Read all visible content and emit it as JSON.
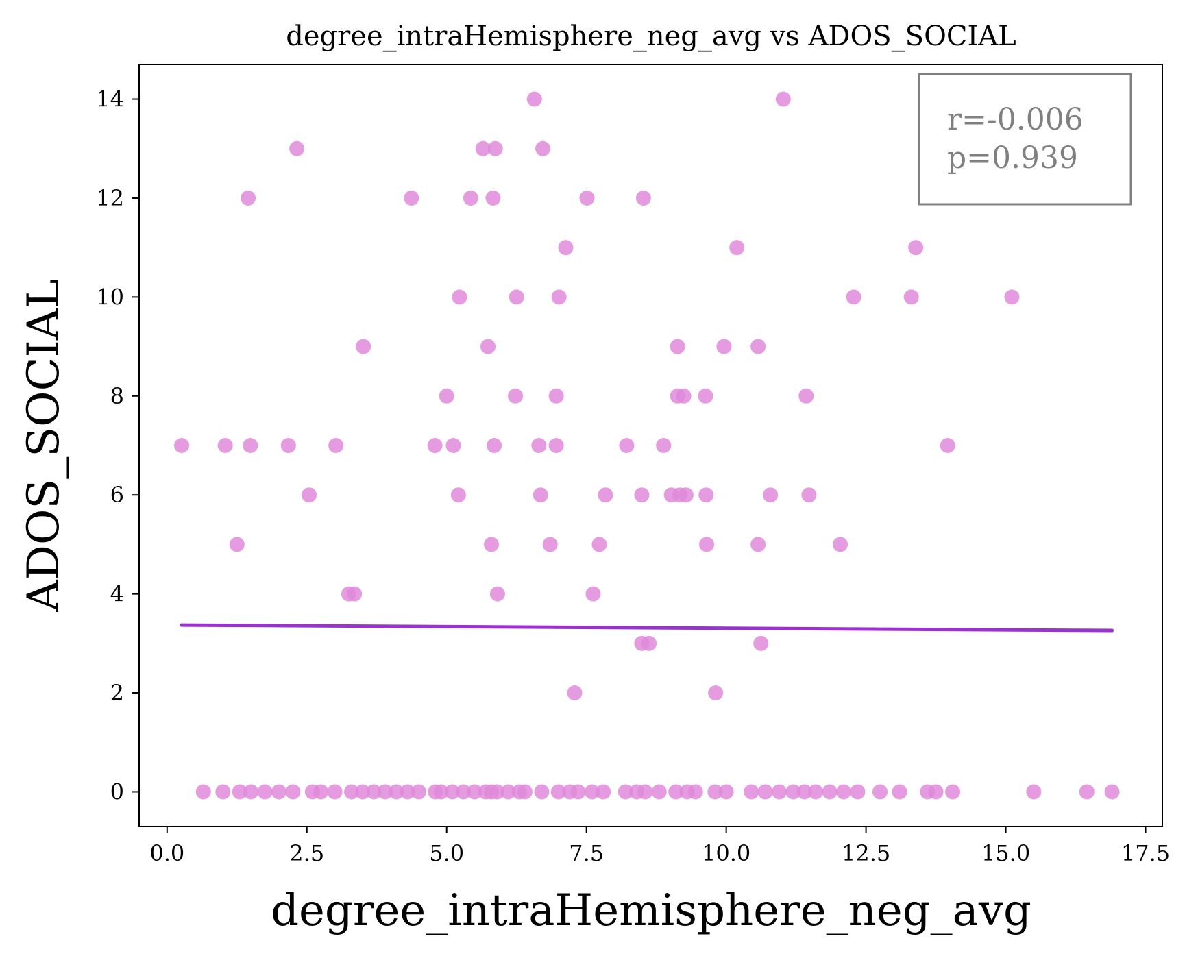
{
  "chart_data": {
    "type": "scatter",
    "title": "degree_intraHemisphere_neg_avg vs ADOS_SOCIAL",
    "xlabel": "degree_intraHemisphere_neg_avg",
    "ylabel": "ADOS_SOCIAL",
    "xlim": [
      -0.5,
      17.8
    ],
    "ylim": [
      -0.7,
      14.7
    ],
    "xticks": [
      0.0,
      2.5,
      5.0,
      7.5,
      10.0,
      12.5,
      15.0,
      17.5
    ],
    "xtick_labels": [
      "0.0",
      "2.5",
      "5.0",
      "7.5",
      "10.0",
      "12.5",
      "15.0",
      "17.5"
    ],
    "yticks": [
      0,
      2,
      4,
      6,
      8,
      10,
      12,
      14
    ],
    "ytick_labels": [
      "0",
      "2",
      "4",
      "6",
      "8",
      "10",
      "12",
      "14"
    ],
    "grid": false,
    "point_color": "#df8ad9",
    "line_color": "#9a32cd",
    "points": [
      [
        6.57,
        14
      ],
      [
        11.02,
        14
      ],
      [
        2.32,
        13
      ],
      [
        5.65,
        13
      ],
      [
        5.87,
        13
      ],
      [
        6.72,
        13
      ],
      [
        1.45,
        12
      ],
      [
        4.37,
        12
      ],
      [
        5.43,
        12
      ],
      [
        5.83,
        12
      ],
      [
        7.51,
        12
      ],
      [
        8.52,
        12
      ],
      [
        7.13,
        11
      ],
      [
        10.19,
        11
      ],
      [
        13.39,
        11
      ],
      [
        5.23,
        10
      ],
      [
        6.25,
        10
      ],
      [
        7.01,
        10
      ],
      [
        12.28,
        10
      ],
      [
        13.31,
        10
      ],
      [
        15.11,
        10
      ],
      [
        3.51,
        9
      ],
      [
        5.74,
        9
      ],
      [
        9.13,
        9
      ],
      [
        9.96,
        9
      ],
      [
        10.57,
        9
      ],
      [
        5.0,
        8
      ],
      [
        6.23,
        8
      ],
      [
        6.96,
        8
      ],
      [
        9.13,
        8
      ],
      [
        9.24,
        8
      ],
      [
        9.63,
        8
      ],
      [
        11.43,
        8
      ],
      [
        0.26,
        7
      ],
      [
        1.04,
        7
      ],
      [
        1.49,
        7
      ],
      [
        2.17,
        7
      ],
      [
        3.02,
        7
      ],
      [
        4.79,
        7
      ],
      [
        5.12,
        7
      ],
      [
        5.85,
        7
      ],
      [
        6.65,
        7
      ],
      [
        6.96,
        7
      ],
      [
        8.22,
        7
      ],
      [
        8.88,
        7
      ],
      [
        13.96,
        7
      ],
      [
        2.54,
        6
      ],
      [
        5.21,
        6
      ],
      [
        6.68,
        6
      ],
      [
        7.84,
        6
      ],
      [
        8.49,
        6
      ],
      [
        9.02,
        6
      ],
      [
        9.17,
        6
      ],
      [
        9.28,
        6
      ],
      [
        9.64,
        6
      ],
      [
        10.79,
        6
      ],
      [
        11.48,
        6
      ],
      [
        1.25,
        5
      ],
      [
        5.8,
        5
      ],
      [
        6.85,
        5
      ],
      [
        7.73,
        5
      ],
      [
        9.65,
        5
      ],
      [
        10.57,
        5
      ],
      [
        12.04,
        5
      ],
      [
        3.25,
        4
      ],
      [
        3.35,
        4
      ],
      [
        5.91,
        4
      ],
      [
        7.62,
        4
      ],
      [
        8.49,
        3
      ],
      [
        8.62,
        3
      ],
      [
        10.62,
        3
      ],
      [
        7.29,
        2
      ],
      [
        9.81,
        2
      ],
      [
        0.65,
        0
      ],
      [
        1.0,
        0
      ],
      [
        1.3,
        0
      ],
      [
        1.5,
        0
      ],
      [
        1.75,
        0
      ],
      [
        2.0,
        0
      ],
      [
        2.25,
        0
      ],
      [
        2.6,
        0
      ],
      [
        2.75,
        0
      ],
      [
        3.0,
        0
      ],
      [
        3.3,
        0
      ],
      [
        3.5,
        0
      ],
      [
        3.7,
        0
      ],
      [
        3.9,
        0
      ],
      [
        4.1,
        0
      ],
      [
        4.3,
        0
      ],
      [
        4.5,
        0
      ],
      [
        4.8,
        0
      ],
      [
        4.9,
        0
      ],
      [
        5.1,
        0
      ],
      [
        5.3,
        0
      ],
      [
        5.5,
        0
      ],
      [
        5.7,
        0
      ],
      [
        5.8,
        0
      ],
      [
        5.9,
        0
      ],
      [
        6.1,
        0
      ],
      [
        6.3,
        0
      ],
      [
        6.4,
        0
      ],
      [
        6.7,
        0
      ],
      [
        7.0,
        0
      ],
      [
        7.2,
        0
      ],
      [
        7.35,
        0
      ],
      [
        7.6,
        0
      ],
      [
        7.8,
        0
      ],
      [
        8.2,
        0
      ],
      [
        8.4,
        0
      ],
      [
        8.55,
        0
      ],
      [
        8.8,
        0
      ],
      [
        9.1,
        0
      ],
      [
        9.3,
        0
      ],
      [
        9.45,
        0
      ],
      [
        9.8,
        0
      ],
      [
        10.0,
        0
      ],
      [
        10.45,
        0
      ],
      [
        10.7,
        0
      ],
      [
        10.95,
        0
      ],
      [
        11.2,
        0
      ],
      [
        11.4,
        0
      ],
      [
        11.6,
        0
      ],
      [
        11.85,
        0
      ],
      [
        12.1,
        0
      ],
      [
        12.35,
        0
      ],
      [
        12.75,
        0
      ],
      [
        13.1,
        0
      ],
      [
        13.6,
        0
      ],
      [
        13.75,
        0
      ],
      [
        14.05,
        0
      ],
      [
        15.5,
        0
      ],
      [
        16.45,
        0
      ],
      [
        16.9,
        0
      ]
    ],
    "regression": {
      "x": [
        0.26,
        16.9
      ],
      "y": [
        3.37,
        3.26
      ]
    },
    "annotation": {
      "r": "r=-0.006",
      "p": "p=0.939",
      "position": "top-right",
      "text_color": "#808080"
    }
  }
}
